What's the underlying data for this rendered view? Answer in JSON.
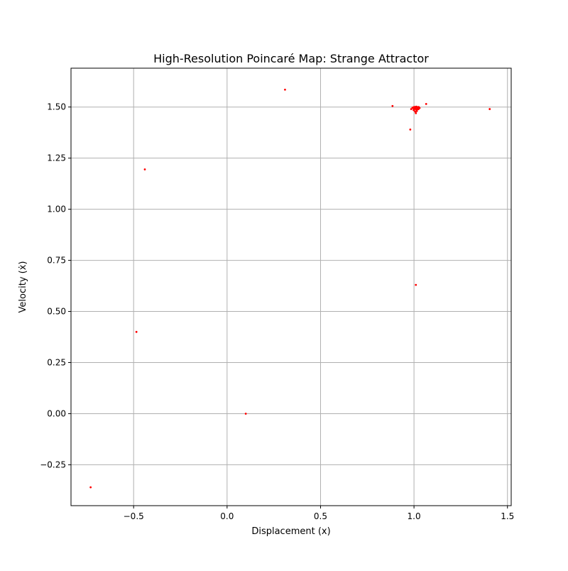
{
  "chart_data": {
    "type": "scatter",
    "title": "High-Resolution Poincaré Map: Strange Attractor",
    "xlabel": "Displacement (x)",
    "ylabel": "Velocity (ẋ)",
    "xlim": [
      -0.835,
      1.52
    ],
    "ylim": [
      -0.45,
      1.69
    ],
    "xticks": [
      -0.5,
      0.0,
      0.5,
      1.0,
      1.5
    ],
    "xtick_labels": [
      "−0.5",
      "0.0",
      "0.5",
      "1.0",
      "1.5"
    ],
    "yticks": [
      -0.25,
      0.0,
      0.25,
      0.5,
      0.75,
      1.0,
      1.25,
      1.5
    ],
    "ytick_labels": [
      "−0.25",
      "0.00",
      "0.25",
      "0.50",
      "0.75",
      "1.00",
      "1.25",
      "1.50"
    ],
    "grid": true,
    "marker_color": "#ff0000",
    "series": [
      {
        "x": [
          -0.73,
          -0.485,
          -0.44,
          0.1,
          0.31,
          0.885,
          0.98,
          1.01,
          1.065,
          1.405,
          0.985,
          0.995,
          1.0,
          1.005,
          1.01,
          1.015,
          1.02,
          1.025,
          1.03,
          1.0,
          1.012,
          1.018,
          0.992,
          1.008,
          1.022,
          1.014,
          1.003,
          1.027,
          0.998,
          1.016,
          1.006,
          1.024,
          1.01,
          1.019,
          1.013,
          1.0
        ],
        "y": [
          -0.36,
          0.4,
          1.195,
          0.0,
          1.585,
          1.505,
          1.39,
          0.63,
          1.515,
          1.49,
          1.49,
          1.495,
          1.485,
          1.5,
          1.49,
          1.48,
          1.495,
          1.5,
          1.495,
          1.5,
          1.502,
          1.488,
          1.497,
          1.493,
          1.498,
          1.486,
          1.492,
          1.496,
          1.485,
          1.5,
          1.478,
          1.49,
          1.47,
          1.494,
          1.499,
          1.489
        ]
      }
    ]
  }
}
